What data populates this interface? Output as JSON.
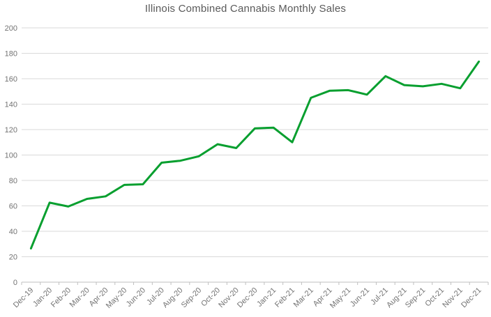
{
  "chart_data": {
    "type": "line",
    "title": "Illinois Combined Cannabis Monthly Sales",
    "categories": [
      "Dec-19",
      "Jan-20",
      "Feb-20",
      "Mar-20",
      "Apr-20",
      "May-20",
      "Jun-20",
      "Jul-20",
      "Aug-20",
      "Sep-20",
      "Oct-20",
      "Nov-20",
      "Dec-20",
      "Jan-21",
      "Feb-21",
      "Mar-21",
      "Apr-21",
      "May-21",
      "Jun-21",
      "Jul-21",
      "Aug-21",
      "Sep-21",
      "Oct-21",
      "Nov-21",
      "Dec-21"
    ],
    "values": [
      26.5,
      62.5,
      59.5,
      65.5,
      67.5,
      76.5,
      77,
      94,
      95.5,
      99,
      108.5,
      105.5,
      121,
      121.5,
      110,
      145,
      150.5,
      151,
      147.5,
      162,
      155,
      154,
      156,
      152.5,
      173.5
    ],
    "ylim": [
      0,
      200
    ],
    "ytick_step": 20,
    "grid": true,
    "legend": false,
    "series_name": "Illinois Combined Cannabis Monthly Sales",
    "colors": {
      "line": "#089f2f",
      "gridline": "#d9d9d9",
      "axis_line": "#bfbfbf",
      "title_text": "#595959",
      "tick_text": "#737373"
    }
  }
}
